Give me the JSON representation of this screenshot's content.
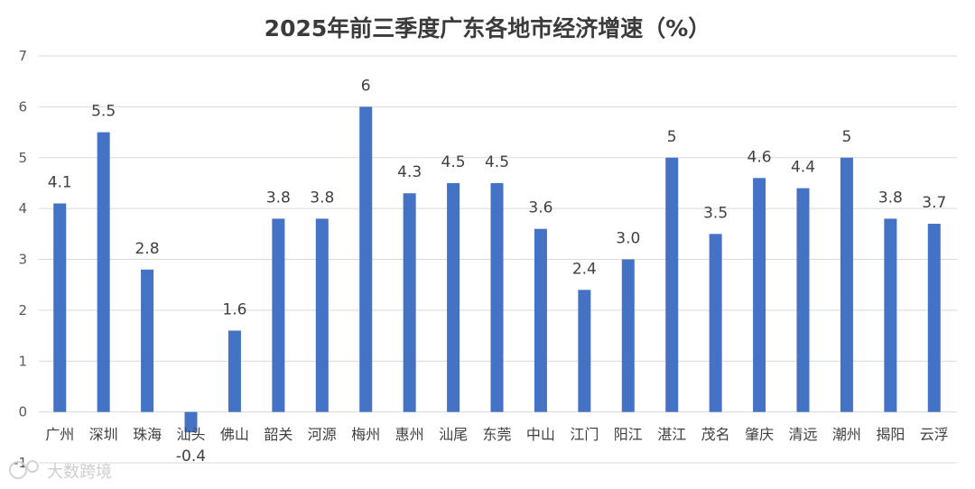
{
  "chart_data": {
    "type": "bar",
    "title": "2025年前三季度广东各地市经济增速（%）",
    "xlabel": "",
    "ylabel": "",
    "ylim": [
      -1,
      7
    ],
    "yticks": [
      7,
      6,
      5,
      4,
      3,
      2,
      1,
      0,
      -1
    ],
    "grid": true,
    "categories": [
      "广州",
      "深圳",
      "珠海",
      "汕头",
      "佛山",
      "韶关",
      "河源",
      "梅州",
      "惠州",
      "汕尾",
      "东莞",
      "中山",
      "江门",
      "阳江",
      "湛江",
      "茂名",
      "肇庆",
      "清远",
      "潮州",
      "揭阳",
      "云浮"
    ],
    "values": [
      4.1,
      5.5,
      2.8,
      -0.4,
      1.6,
      3.8,
      3.8,
      6,
      4.3,
      4.5,
      4.5,
      3.6,
      2.4,
      3.0,
      5,
      3.5,
      4.6,
      4.4,
      5,
      3.8,
      3.7
    ],
    "labels": [
      "4.1",
      "5.5",
      "2.8",
      "-0.4",
      "1.6",
      "3.8",
      "3.8",
      "6",
      "4.3",
      "4.5",
      "4.5",
      "3.6",
      "2.4",
      "3.0",
      "5",
      "3.5",
      "4.6",
      "4.4",
      "5",
      "3.8",
      "3.7"
    ],
    "bar_color": "#4472c4"
  },
  "watermark": {
    "text": "大数跨境",
    "icon": "logo-icon"
  }
}
